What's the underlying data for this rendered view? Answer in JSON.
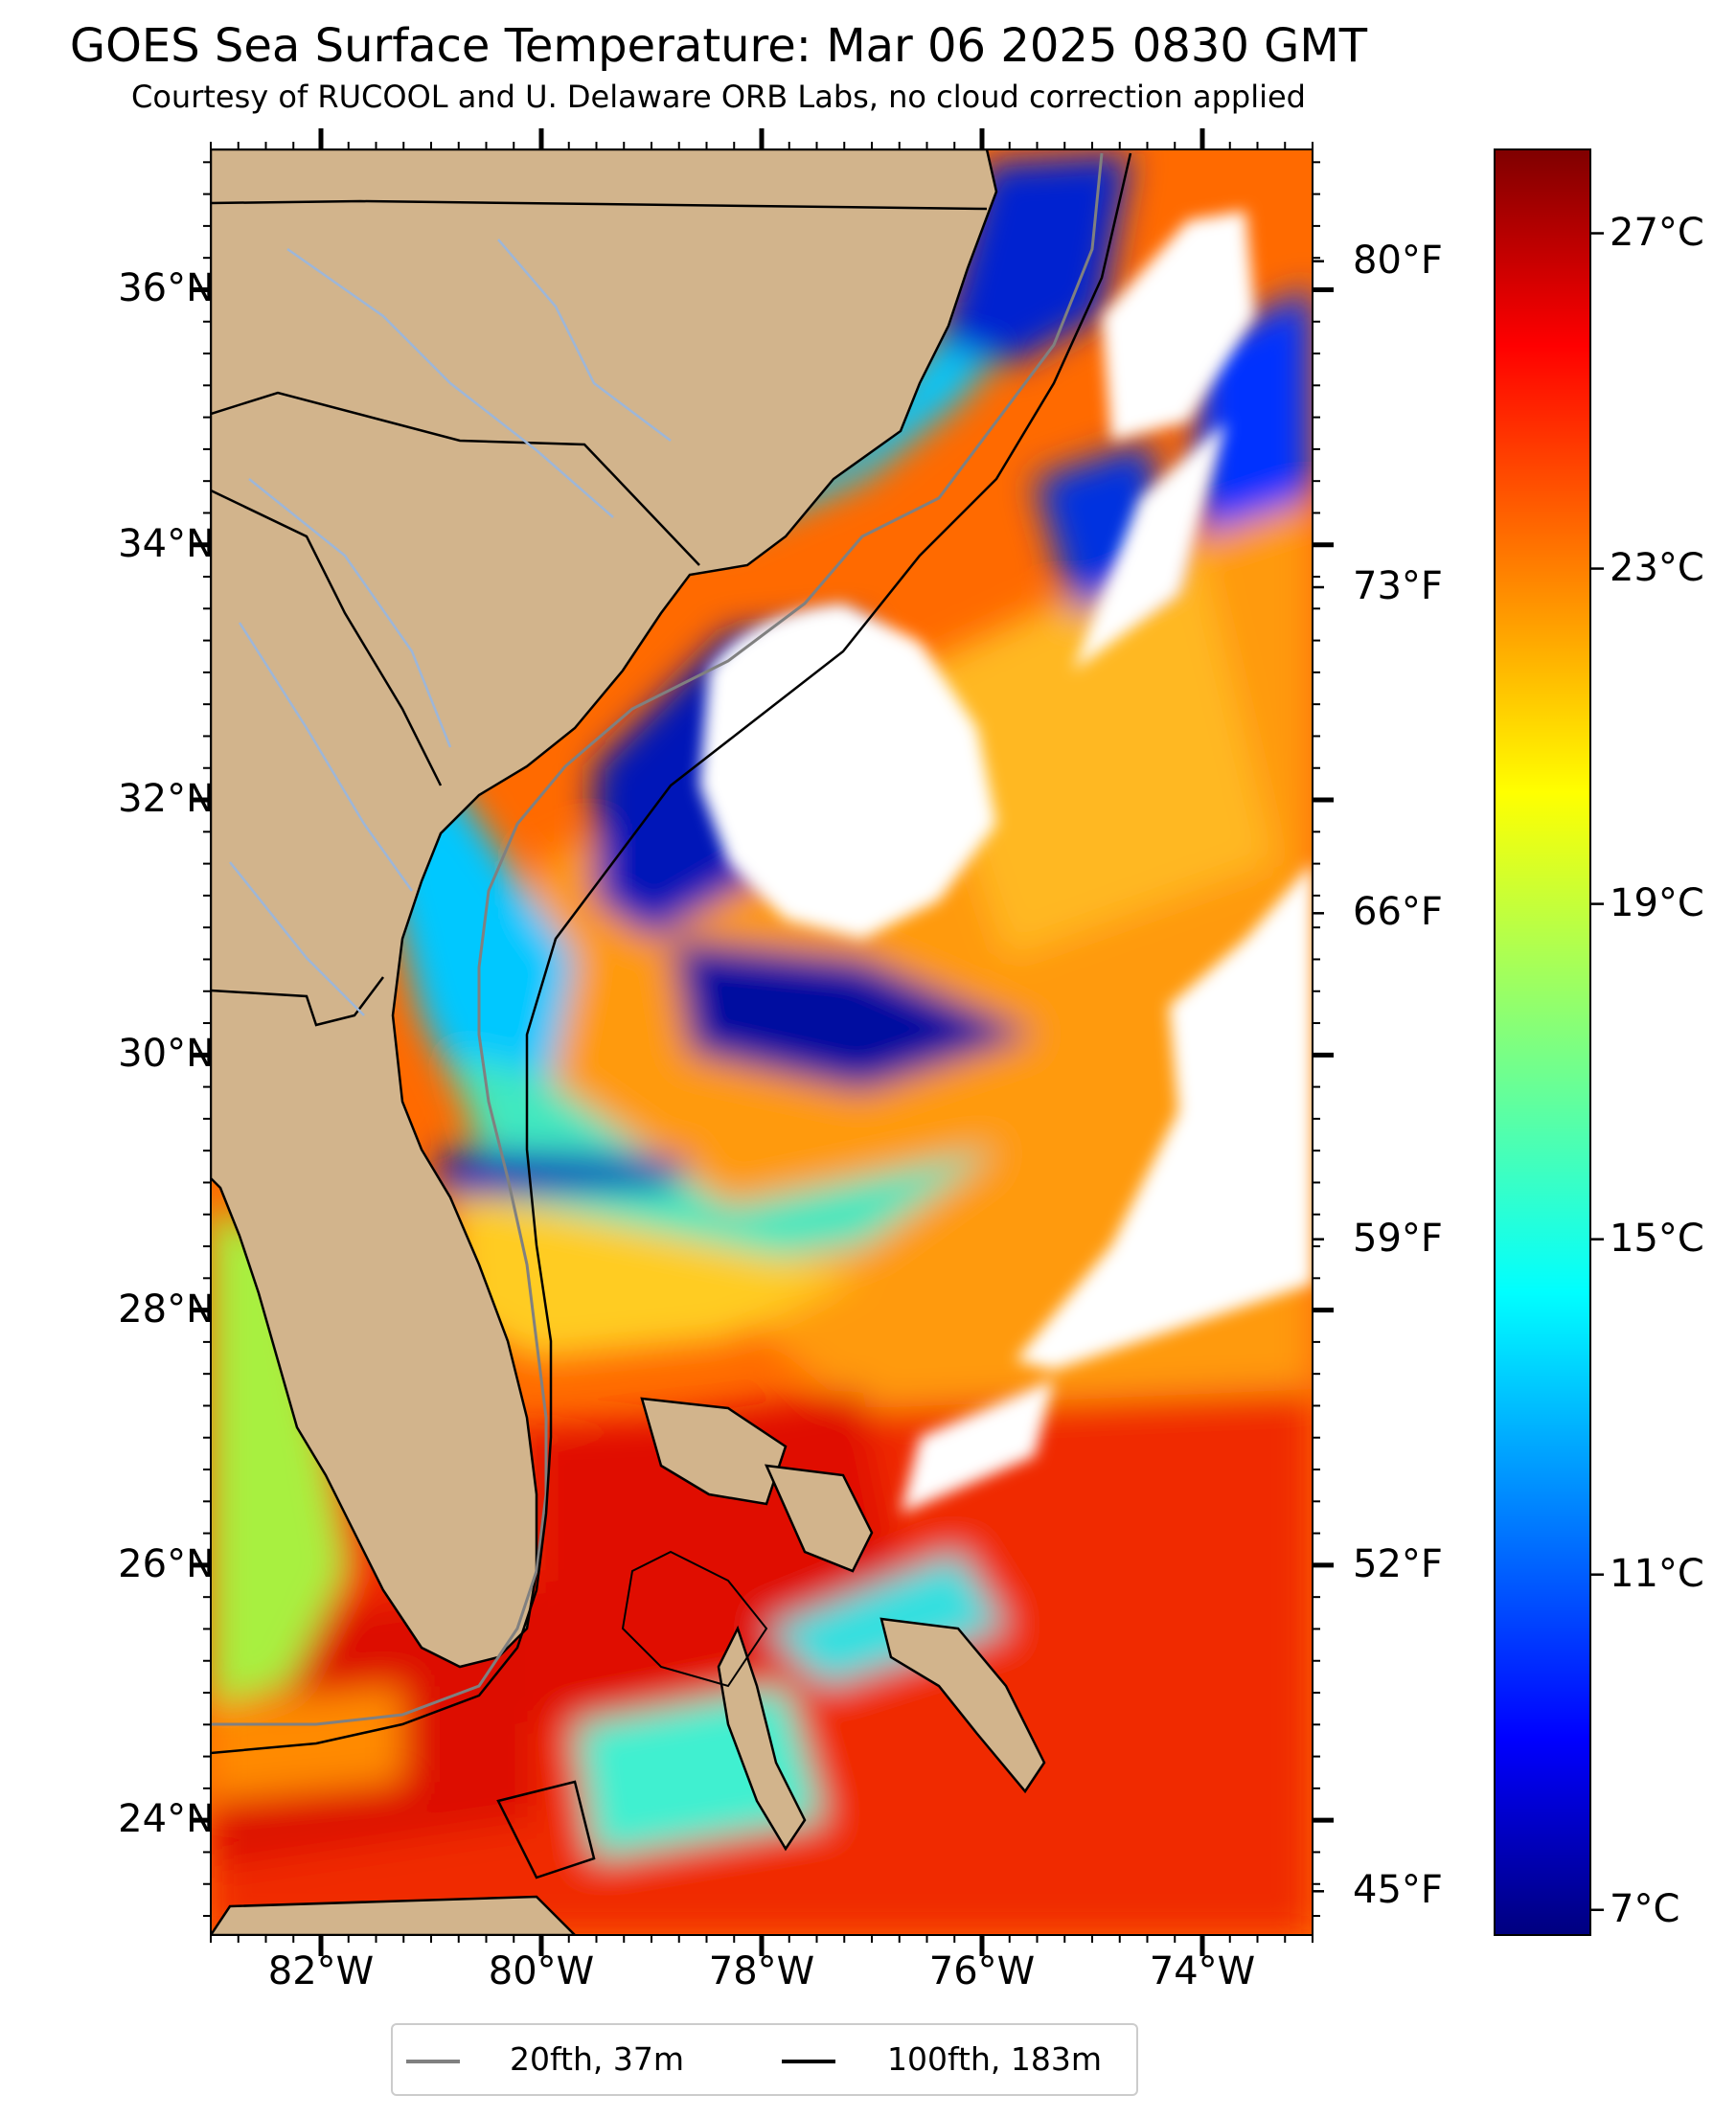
{
  "title": "GOES Sea Surface Temperature: Mar 06 2025 0830 GMT",
  "subtitle": "Courtesy of RUCOOL and U. Delaware ORB Labs, no cloud correction applied",
  "map": {
    "region": "Southeast US coast, Florida and Bahamas",
    "lon_range": [
      -83,
      -73
    ],
    "lat_range": [
      23.1,
      37.1
    ],
    "land_color": "#d2b48c",
    "cloud_color": "#ffffff",
    "lat_labels": [
      {
        "value": 36,
        "text": "36°N"
      },
      {
        "value": 34,
        "text": "34°N"
      },
      {
        "value": 32,
        "text": "32°N"
      },
      {
        "value": 30,
        "text": "30°N"
      },
      {
        "value": 28,
        "text": "28°N"
      },
      {
        "value": 26,
        "text": "26°N"
      },
      {
        "value": 24,
        "text": "24°N"
      }
    ],
    "lon_labels": [
      {
        "value": -82,
        "text": "82°W"
      },
      {
        "value": -80,
        "text": "80°W"
      },
      {
        "value": -78,
        "text": "78°W"
      },
      {
        "value": -76,
        "text": "76°W"
      },
      {
        "value": -74,
        "text": "74°W"
      }
    ]
  },
  "colorbar": {
    "range_c": [
      6.7,
      28.0
    ],
    "colormap": "jet",
    "celsius_labels": [
      {
        "value": 27,
        "text": "27°C"
      },
      {
        "value": 23,
        "text": "23°C"
      },
      {
        "value": 19,
        "text": "19°C"
      },
      {
        "value": 15,
        "text": "15°C"
      },
      {
        "value": 11,
        "text": "11°C"
      },
      {
        "value": 7,
        "text": "7°C"
      }
    ],
    "fahrenheit_labels": [
      {
        "value": 80,
        "text": "80°F"
      },
      {
        "value": 73,
        "text": "73°F"
      },
      {
        "value": 66,
        "text": "66°F"
      },
      {
        "value": 59,
        "text": "59°F"
      },
      {
        "value": 52,
        "text": "52°F"
      },
      {
        "value": 45,
        "text": "45°F"
      }
    ]
  },
  "legend": {
    "items": [
      {
        "label": "20fth, 37m",
        "color": "#808080"
      },
      {
        "label": "100fth, 183m",
        "color": "#000000"
      }
    ]
  }
}
